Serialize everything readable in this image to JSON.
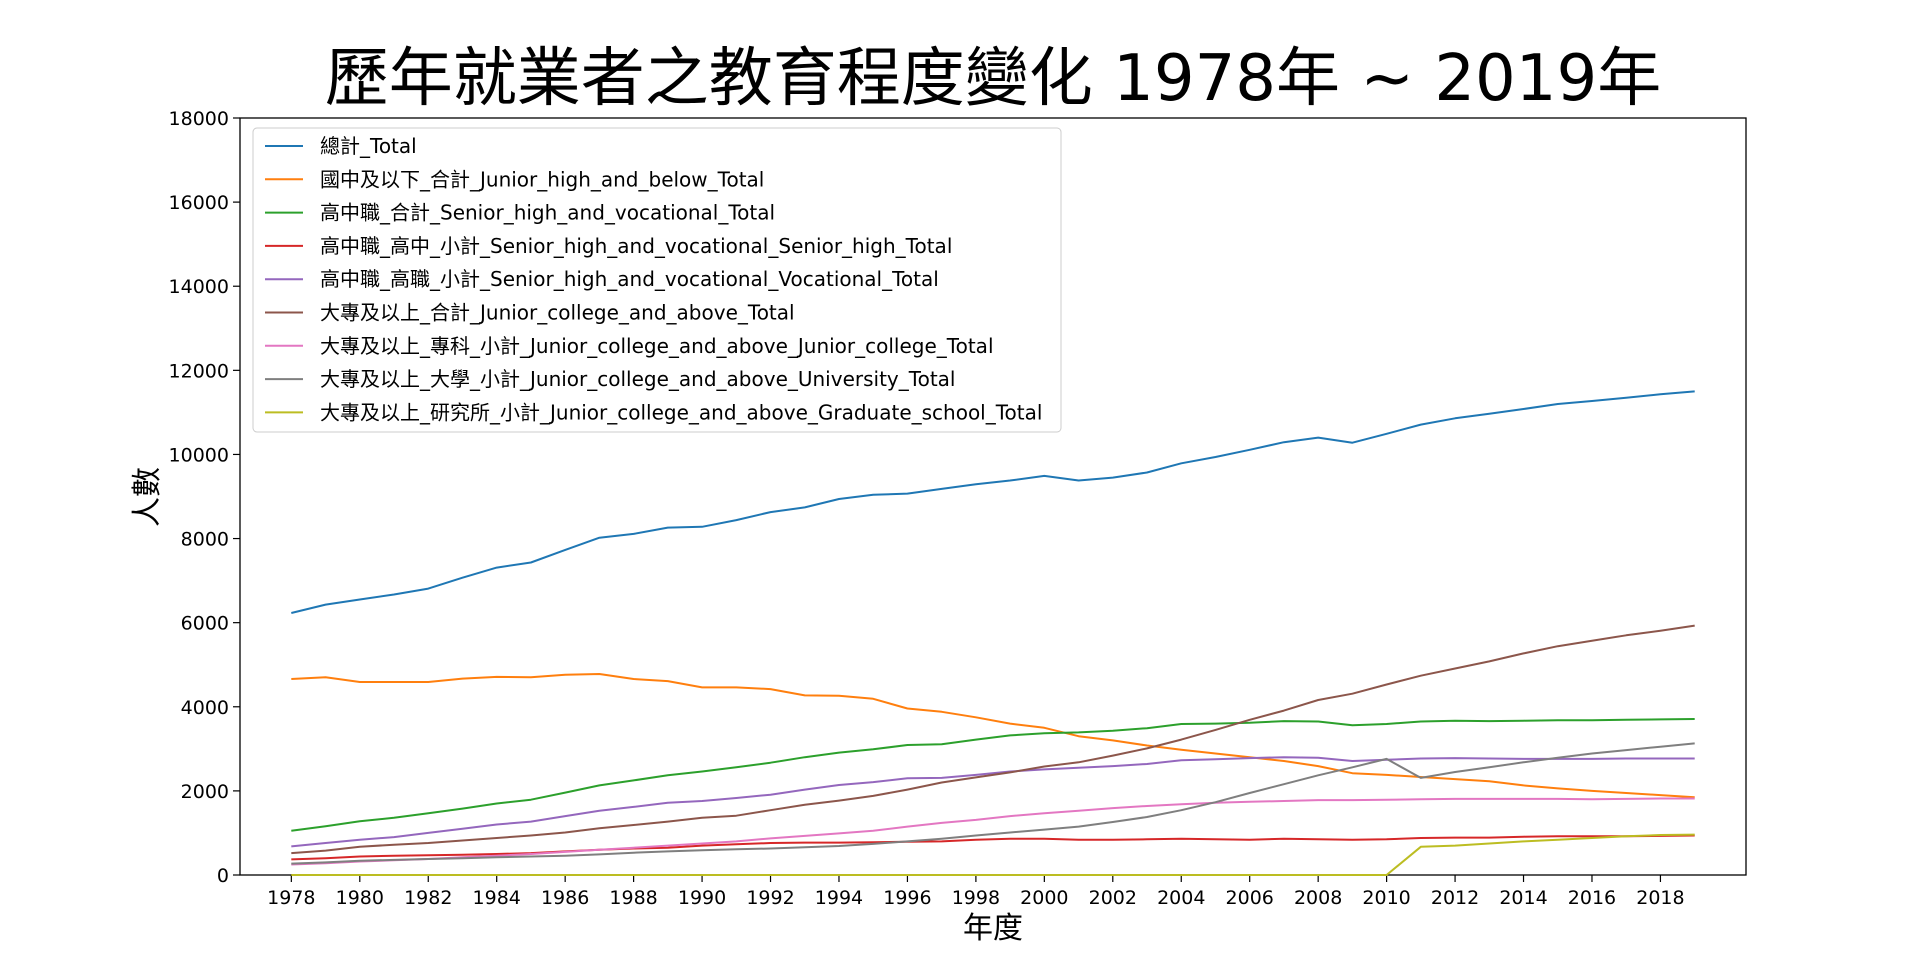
{
  "chart_data": {
    "type": "line",
    "title": "歷年就業者之教育程度變化 1978年 ~ 2019年",
    "xlabel": "年度",
    "ylabel": "人數",
    "xlim": [
      1976.5,
      2020.5
    ],
    "ylim": [
      0,
      18000
    ],
    "xticks": [
      1978,
      1980,
      1982,
      1984,
      1986,
      1988,
      1990,
      1992,
      1994,
      1996,
      1998,
      2000,
      2002,
      2004,
      2006,
      2008,
      2010,
      2012,
      2014,
      2016,
      2018
    ],
    "yticks": [
      0,
      2000,
      4000,
      6000,
      8000,
      10000,
      12000,
      14000,
      16000,
      18000
    ],
    "legend_position": "upper left",
    "grid": false,
    "x": [
      1978,
      1979,
      1980,
      1981,
      1982,
      1983,
      1984,
      1985,
      1986,
      1987,
      1988,
      1989,
      1990,
      1991,
      1992,
      1993,
      1994,
      1995,
      1996,
      1997,
      1998,
      1999,
      2000,
      2001,
      2002,
      2003,
      2004,
      2005,
      2006,
      2007,
      2008,
      2009,
      2010,
      2011,
      2012,
      2013,
      2014,
      2015,
      2016,
      2017,
      2018,
      2019
    ],
    "series": [
      {
        "name": "總計_Total",
        "color": "#1f77b4",
        "values": [
          6230,
          6430,
          6550,
          6670,
          6810,
          7070,
          7310,
          7430,
          7730,
          8020,
          8110,
          8260,
          8280,
          8440,
          8630,
          8740,
          8940,
          9040,
          9070,
          9180,
          9290,
          9380,
          9490,
          9380,
          9450,
          9570,
          9790,
          9940,
          10110,
          10290,
          10400,
          10280,
          10490,
          10710,
          10860,
          10970,
          11080,
          11200,
          11270,
          11350,
          11430,
          11500
        ]
      },
      {
        "name": "國中及以下_合計_Junior_high_and_below_Total",
        "color": "#ff7f0e",
        "values": [
          4660,
          4700,
          4590,
          4590,
          4590,
          4670,
          4710,
          4700,
          4760,
          4780,
          4660,
          4610,
          4460,
          4460,
          4420,
          4270,
          4260,
          4190,
          3960,
          3880,
          3750,
          3600,
          3500,
          3300,
          3200,
          3080,
          2980,
          2890,
          2800,
          2710,
          2590,
          2420,
          2380,
          2330,
          2280,
          2230,
          2130,
          2060,
          2000,
          1950,
          1900,
          1850
        ]
      },
      {
        "name": "高中職_合計_Senior_high_and_vocational_Total",
        "color": "#2ca02c",
        "values": [
          1050,
          1160,
          1280,
          1360,
          1470,
          1580,
          1700,
          1790,
          1960,
          2130,
          2250,
          2370,
          2460,
          2560,
          2670,
          2800,
          2910,
          2990,
          3090,
          3110,
          3220,
          3320,
          3370,
          3390,
          3430,
          3490,
          3590,
          3600,
          3620,
          3660,
          3650,
          3560,
          3590,
          3650,
          3670,
          3660,
          3670,
          3680,
          3680,
          3690,
          3700,
          3710
        ]
      },
      {
        "name": "高中職_高中_小計_Senior_high_and_vocational_Senior_high_Total",
        "color": "#d62728",
        "values": [
          370,
          400,
          440,
          460,
          470,
          480,
          500,
          520,
          560,
          600,
          630,
          650,
          700,
          730,
          760,
          770,
          770,
          780,
          790,
          800,
          840,
          860,
          860,
          840,
          840,
          850,
          860,
          850,
          840,
          860,
          850,
          840,
          850,
          880,
          890,
          890,
          910,
          920,
          920,
          920,
          930,
          940
        ]
      },
      {
        "name": "高中職_高職_小計_Senior_high_and_vocational_Vocational_Total",
        "color": "#9467bd",
        "values": [
          680,
          760,
          840,
          900,
          1000,
          1100,
          1200,
          1270,
          1400,
          1530,
          1620,
          1720,
          1760,
          1830,
          1910,
          2030,
          2140,
          2210,
          2300,
          2310,
          2380,
          2460,
          2510,
          2550,
          2590,
          2640,
          2730,
          2750,
          2780,
          2800,
          2790,
          2710,
          2740,
          2770,
          2780,
          2770,
          2760,
          2760,
          2760,
          2770,
          2770,
          2770
        ]
      },
      {
        "name": "大專及以上_合計_Junior_college_and_above_Total",
        "color": "#8c564b",
        "values": [
          520,
          580,
          670,
          720,
          760,
          820,
          880,
          940,
          1010,
          1110,
          1190,
          1270,
          1360,
          1410,
          1540,
          1670,
          1770,
          1880,
          2030,
          2200,
          2320,
          2440,
          2580,
          2680,
          2840,
          3010,
          3220,
          3450,
          3690,
          3910,
          4160,
          4310,
          4530,
          4740,
          4910,
          5080,
          5270,
          5440,
          5570,
          5700,
          5810,
          5930
        ]
      },
      {
        "name": "大專及以上_專科_小計_Junior_college_and_above_Junior_college_Total",
        "color": "#e377c2",
        "values": [
          250,
          280,
          320,
          350,
          380,
          420,
          460,
          500,
          550,
          600,
          650,
          700,
          750,
          800,
          870,
          930,
          990,
          1050,
          1150,
          1240,
          1310,
          1400,
          1470,
          1530,
          1590,
          1640,
          1680,
          1720,
          1740,
          1760,
          1780,
          1780,
          1790,
          1800,
          1810,
          1810,
          1810,
          1810,
          1800,
          1810,
          1820,
          1820
        ]
      },
      {
        "name": "大專及以上_大學_小計_Junior_college_and_above_University_Total",
        "color": "#7f7f7f",
        "values": [
          270,
          300,
          340,
          360,
          380,
          400,
          420,
          440,
          460,
          490,
          530,
          560,
          590,
          610,
          630,
          660,
          690,
          740,
          800,
          860,
          940,
          1010,
          1080,
          1150,
          1260,
          1380,
          1540,
          1730,
          1950,
          2160,
          2370,
          2560,
          2760,
          2310,
          2450,
          2560,
          2680,
          2790,
          2890,
          2970,
          3050,
          3130
        ]
      },
      {
        "name": "大專及以上_研究所_小計_Junior_college_and_above_Graduate_school_Total",
        "color": "#bcbd22",
        "values": [
          0,
          0,
          0,
          0,
          0,
          0,
          0,
          0,
          0,
          0,
          0,
          0,
          0,
          0,
          0,
          0,
          0,
          0,
          0,
          0,
          0,
          0,
          0,
          0,
          0,
          0,
          0,
          0,
          0,
          0,
          0,
          0,
          0,
          670,
          700,
          750,
          800,
          840,
          880,
          920,
          950,
          960
        ]
      }
    ]
  }
}
